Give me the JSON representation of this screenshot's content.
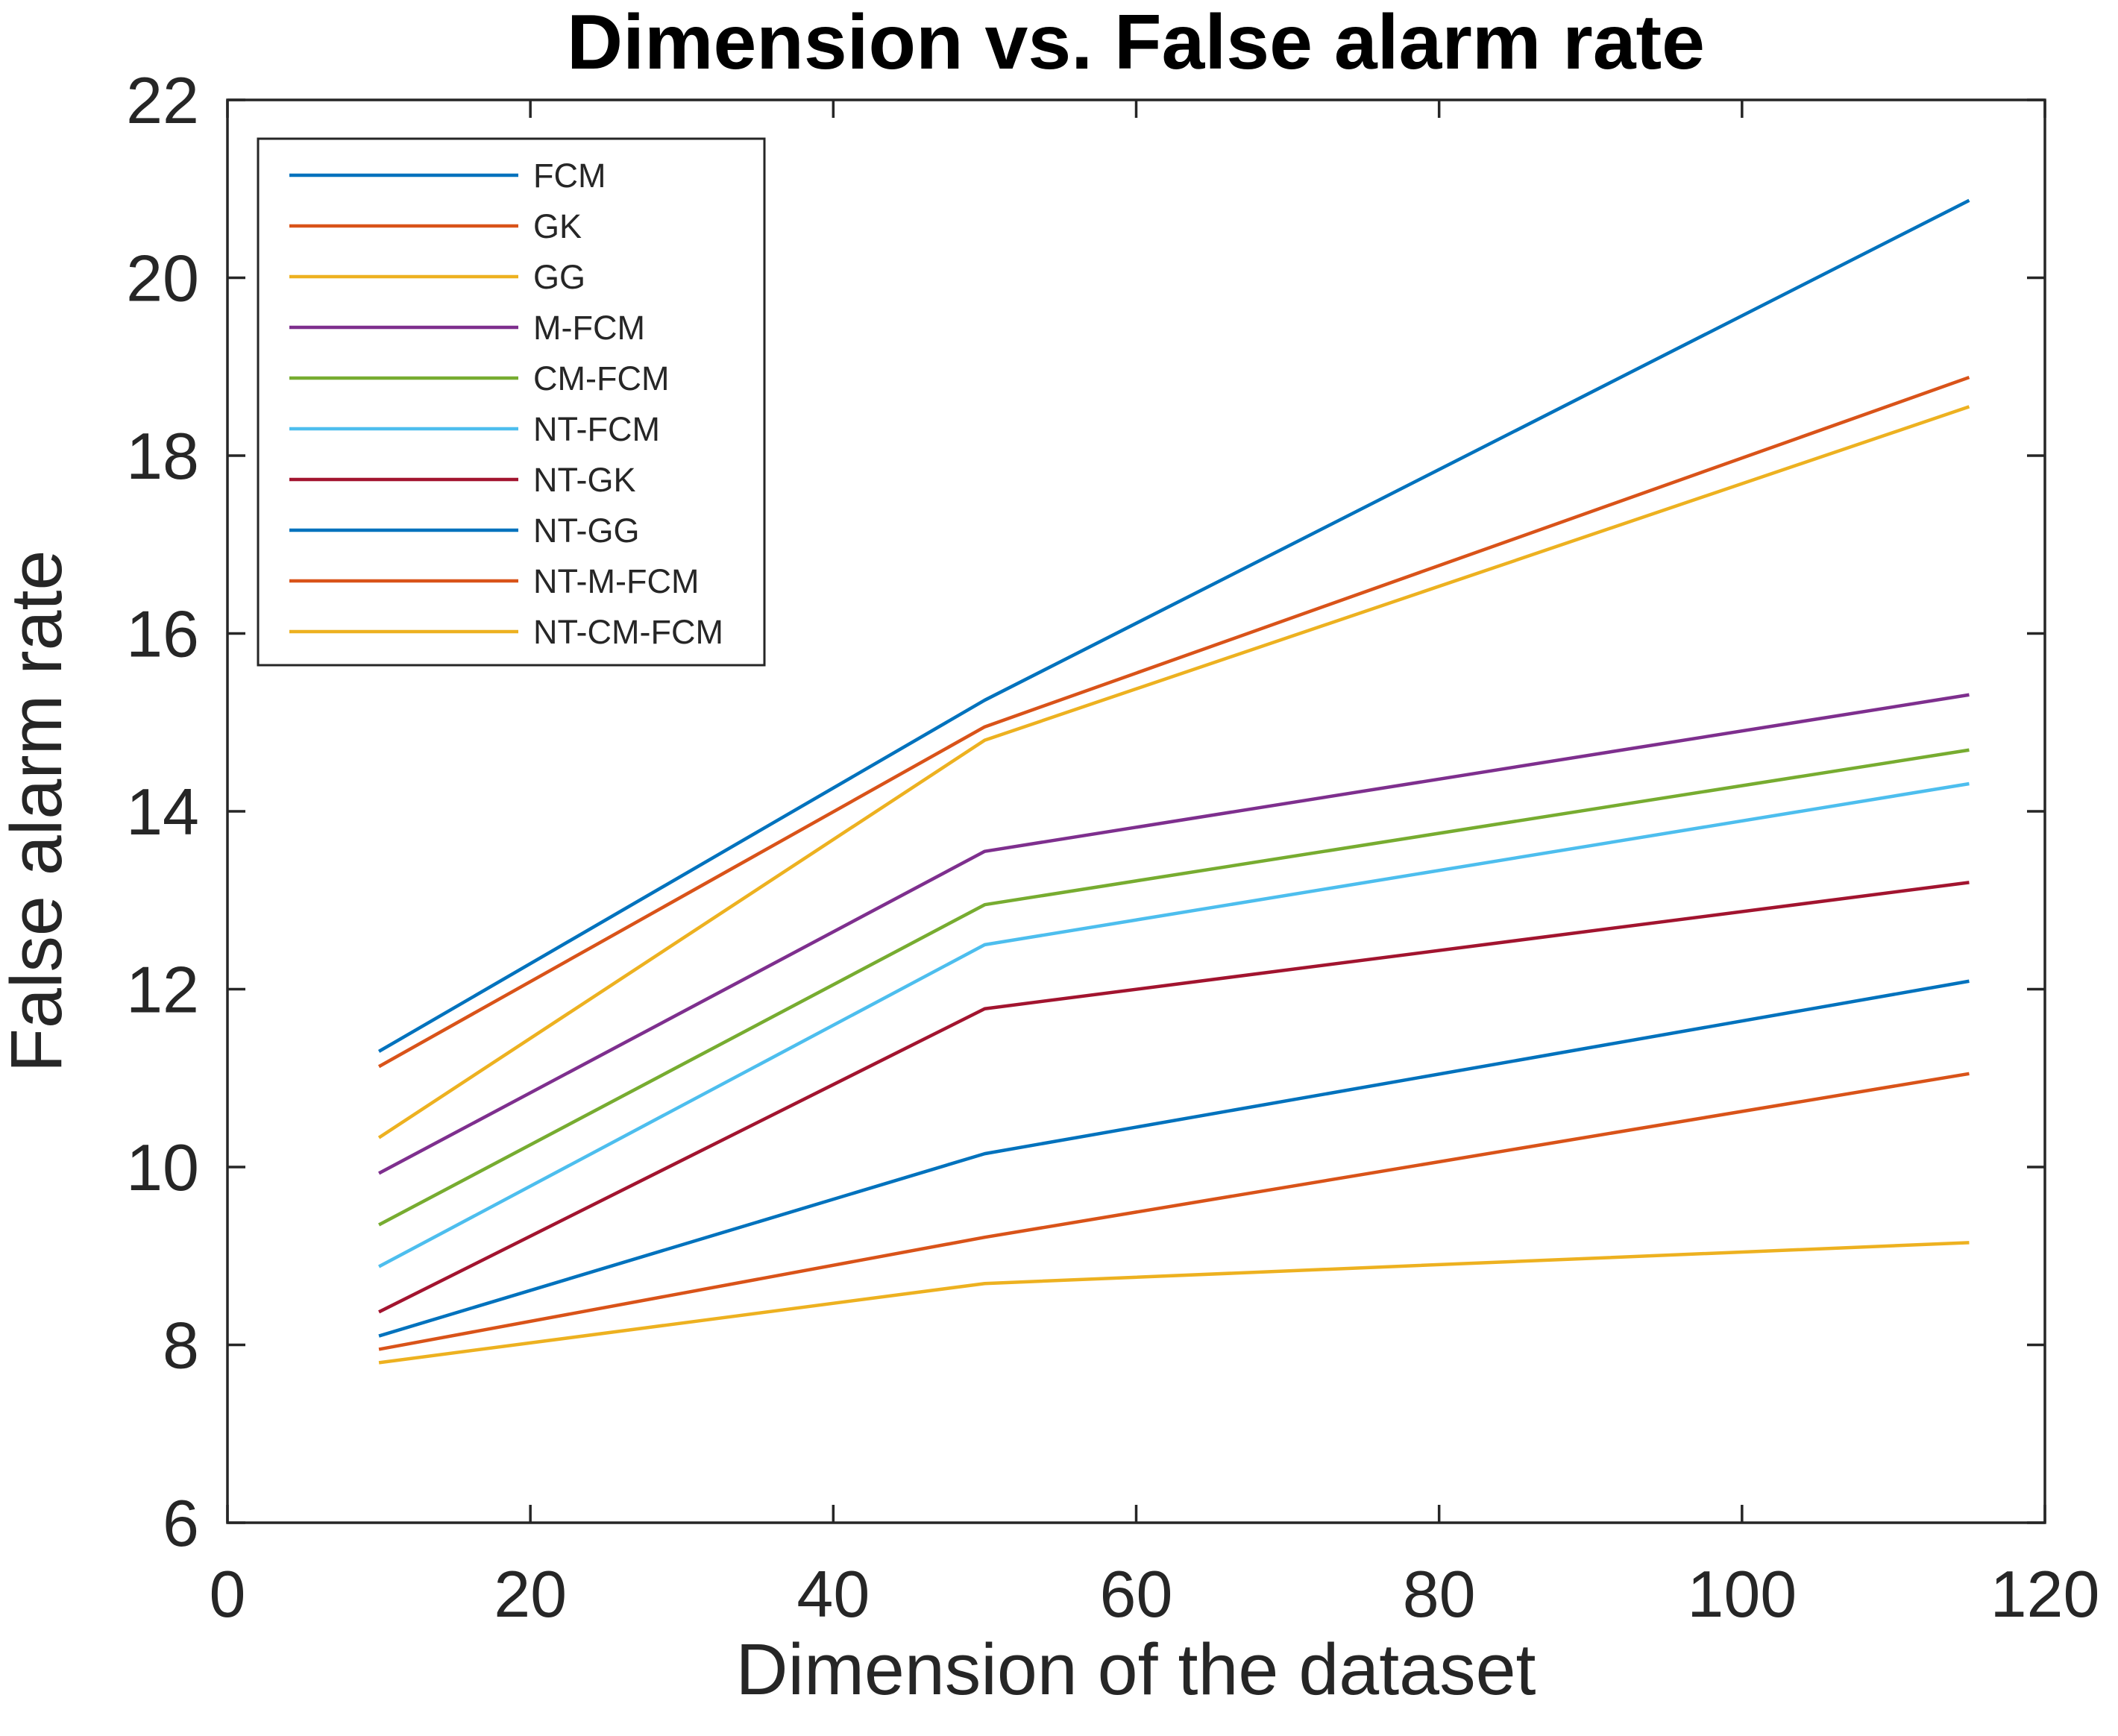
{
  "chart_data": {
    "type": "line",
    "title": "Dimension vs. False alarm rate",
    "xlabel": "Dimension of the dataset",
    "ylabel": "False alarm rate",
    "x": [
      10,
      50,
      115
    ],
    "series": [
      {
        "name": "FCM",
        "color": "#0072BD",
        "values": [
          11.3,
          15.25,
          20.87
        ]
      },
      {
        "name": "GK",
        "color": "#D95319",
        "values": [
          11.13,
          14.95,
          18.88
        ]
      },
      {
        "name": "GG",
        "color": "#EDB120",
        "values": [
          10.33,
          14.8,
          18.55
        ]
      },
      {
        "name": "M-FCM",
        "color": "#7E2F8E",
        "values": [
          9.93,
          13.55,
          15.31
        ]
      },
      {
        "name": "CM-FCM",
        "color": "#77AC30",
        "values": [
          9.35,
          12.95,
          14.69
        ]
      },
      {
        "name": "NT-FCM",
        "color": "#4DBEEE",
        "values": [
          8.88,
          12.5,
          14.31
        ]
      },
      {
        "name": "NT-GK",
        "color": "#A2142F",
        "values": [
          8.37,
          11.78,
          13.2
        ]
      },
      {
        "name": "NT-GG",
        "color": "#0072BD",
        "values": [
          8.1,
          10.15,
          12.09
        ]
      },
      {
        "name": "NT-M-FCM",
        "color": "#D95319",
        "values": [
          7.95,
          9.21,
          11.05
        ]
      },
      {
        "name": "NT-CM-FCM",
        "color": "#EDB120",
        "values": [
          7.8,
          8.69,
          9.15
        ]
      }
    ],
    "xlim": [
      0,
      120
    ],
    "ylim": [
      6,
      22
    ],
    "xticks": [
      0,
      20,
      40,
      60,
      80,
      100,
      120
    ],
    "yticks": [
      6,
      8,
      10,
      12,
      14,
      16,
      18,
      20,
      22
    ],
    "grid": false,
    "legend_position": "upper-left-inside",
    "axis_color": "#262626"
  }
}
